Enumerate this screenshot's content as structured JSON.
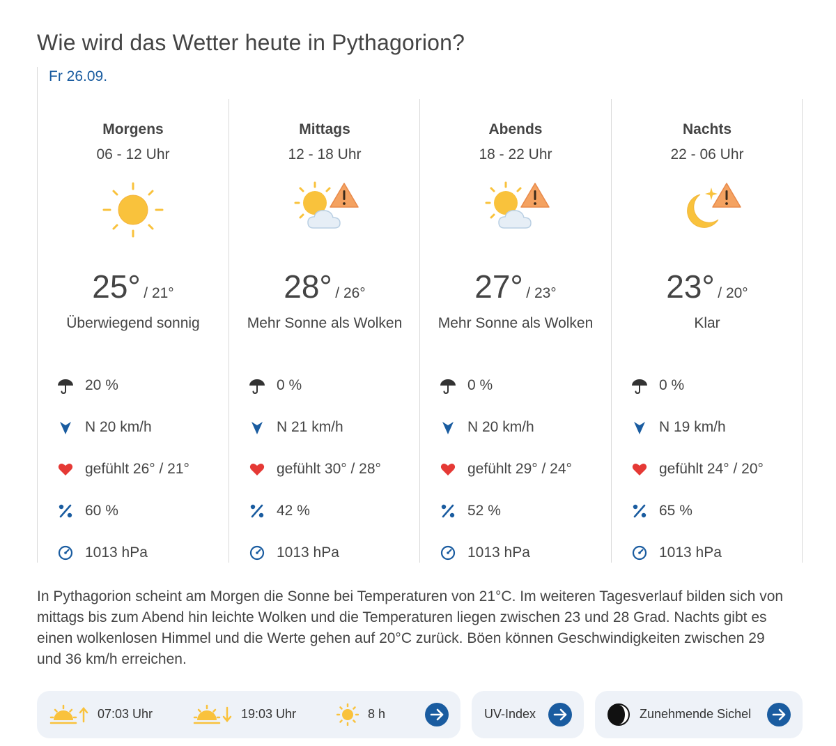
{
  "title": "Wie wird das Wetter heute in Pythagorion?",
  "date": "Fr 26.09.",
  "periods": [
    {
      "name": "Morgens",
      "hours": "06 - 12 Uhr",
      "temp_high": "25°",
      "temp_low": "/ 21°",
      "description": "Überwiegend sonnig",
      "rain": "20 %",
      "wind": "N 20 km/h",
      "feels": "gefühlt 26° / 21°",
      "humidity": "60 %",
      "pressure": "1013 hPa",
      "icon": "sun-icon"
    },
    {
      "name": "Mittags",
      "hours": "12 - 18 Uhr",
      "temp_high": "28°",
      "temp_low": "/ 26°",
      "description": "Mehr Sonne als Wolken",
      "rain": "0 %",
      "wind": "N 21 km/h",
      "feels": "gefühlt 30° / 28°",
      "humidity": "42 %",
      "pressure": "1013 hPa",
      "icon": "sun-cloud-warning-icon"
    },
    {
      "name": "Abends",
      "hours": "18 - 22 Uhr",
      "temp_high": "27°",
      "temp_low": "/ 23°",
      "description": "Mehr Sonne als Wolken",
      "rain": "0 %",
      "wind": "N 20 km/h",
      "feels": "gefühlt 29° / 24°",
      "humidity": "52 %",
      "pressure": "1013 hPa",
      "icon": "sun-cloud-warning-icon"
    },
    {
      "name": "Nachts",
      "hours": "22 - 06 Uhr",
      "temp_high": "23°",
      "temp_low": "/ 20°",
      "description": "Klar",
      "rain": "0 %",
      "wind": "N 19 km/h",
      "feels": "gefühlt 24° / 20°",
      "humidity": "65 %",
      "pressure": "1013 hPa",
      "icon": "moon-warning-icon"
    }
  ],
  "summary": "In Pythagorion scheint am Morgen die Sonne bei Temperaturen von 21°C. Im weiteren Tagesverlauf bilden sich von mittags bis zum Abend hin leichte Wolken und die Temperaturen liegen zwischen 23 und 28 Grad. Nachts gibt es einen wolkenlosen Himmel und die Werte gehen auf 20°C zurück. Böen können Geschwindigkeiten zwischen 29 und 36 km/h erreichen.",
  "footer": {
    "sunrise": "07:03 Uhr",
    "sunset": "19:03 Uhr",
    "sunshine": "8 h",
    "uv_label": "UV-Index",
    "moon_label": "Zunehmende Sichel"
  },
  "colors": {
    "accent": "#1a5ca0",
    "sun": "#f9c23c",
    "warning": "#f4a261",
    "heart": "#e53935",
    "pill_bg": "#eef2f8"
  }
}
